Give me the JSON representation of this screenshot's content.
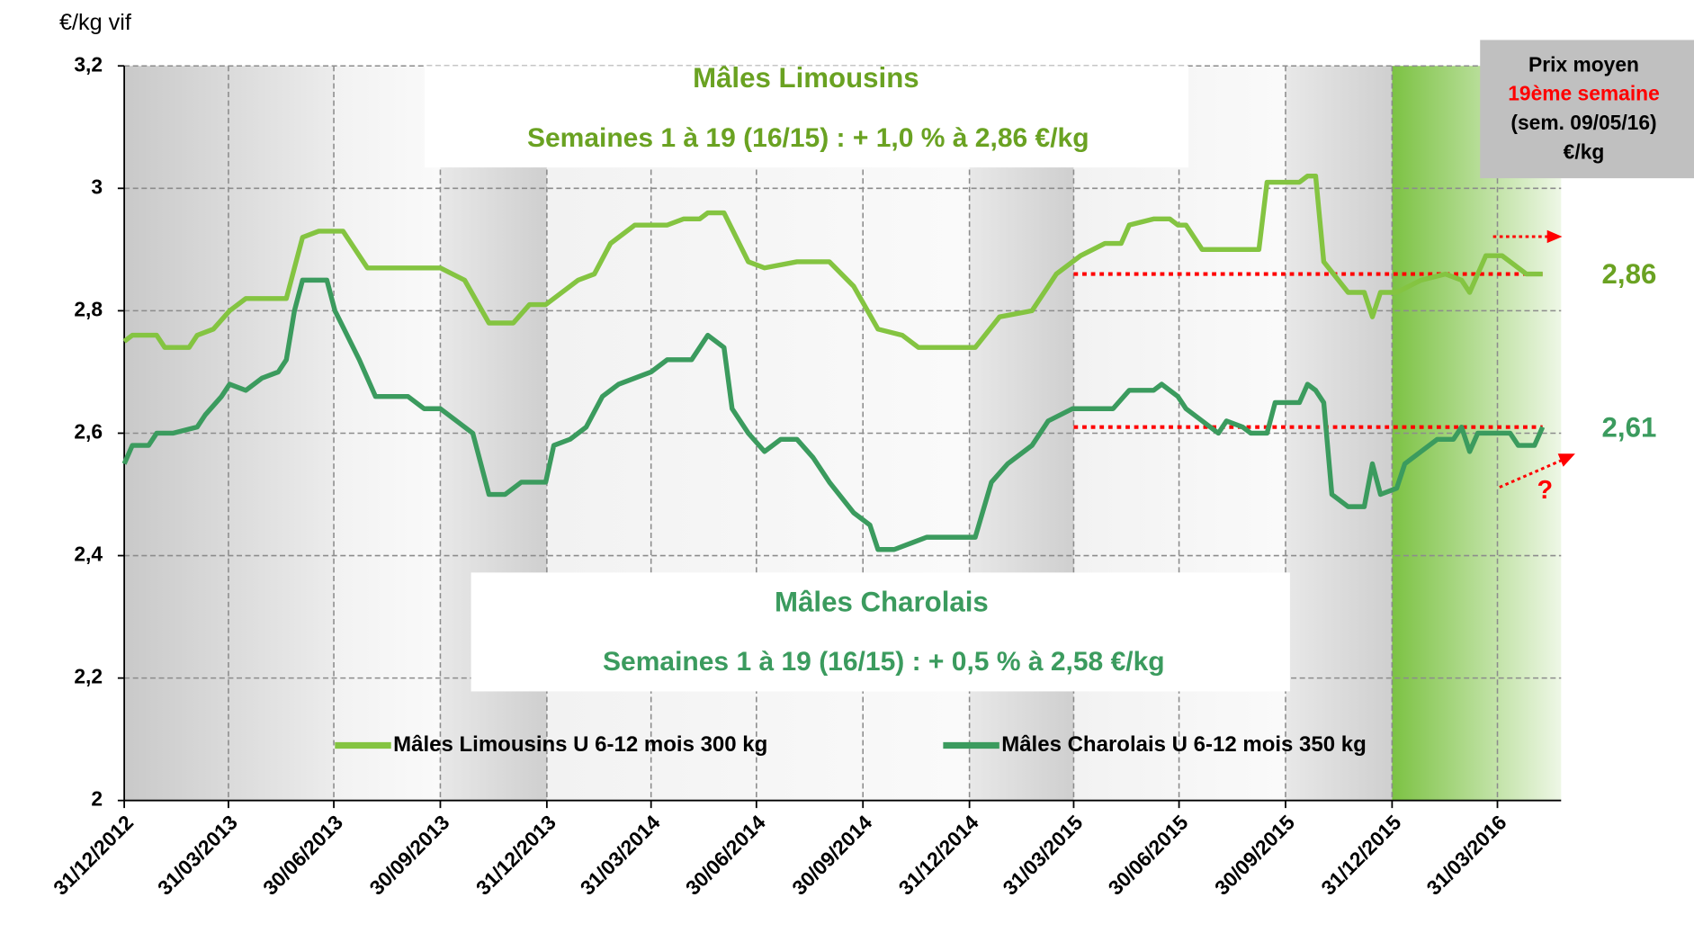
{
  "chart_data": {
    "type": "line",
    "ylabel": "€/kg vif",
    "ylim": [
      2,
      3.2
    ],
    "yticks": [
      2,
      {
        "value": 2.2,
        "label": "2,2"
      },
      {
        "value": 2.4,
        "label": "2,4"
      },
      {
        "value": 2.6,
        "label": "2,6"
      },
      {
        "value": 2.8,
        "label": "2,8"
      },
      3,
      {
        "value": 3.2,
        "label": "3,2"
      }
    ],
    "xlim": [
      "2012-12-31",
      "2016-05-25"
    ],
    "xticks": [
      {
        "value": "2012-12-31",
        "label": "31/12/2012"
      },
      {
        "value": "2013-03-31",
        "label": "31/03/2013"
      },
      {
        "value": "2013-06-30",
        "label": "30/06/2013"
      },
      {
        "value": "2013-09-30",
        "label": "30/09/2013"
      },
      {
        "value": "2013-12-31",
        "label": "31/12/2013"
      },
      {
        "value": "2014-03-31",
        "label": "31/03/2014"
      },
      {
        "value": "2014-06-30",
        "label": "30/06/2014"
      },
      {
        "value": "2014-09-30",
        "label": "30/09/2014"
      },
      {
        "value": "2014-12-31",
        "label": "31/12/2014"
      },
      {
        "value": "2015-03-31",
        "label": "31/03/2015"
      },
      {
        "value": "2015-06-30",
        "label": "30/06/2015"
      },
      {
        "value": "2015-09-30",
        "label": "30/09/2015"
      },
      {
        "value": "2015-12-31",
        "label": "31/12/2015"
      },
      {
        "value": "2016-03-31",
        "label": "31/03/2016"
      }
    ],
    "grid": true,
    "legend": "bottom",
    "series": [
      {
        "name": "Mâles Limousins U 6-12 mois 300 kg",
        "color": "#84c441",
        "x": [
          "2012-12-31",
          "2013-01-07",
          "2013-01-28",
          "2013-02-04",
          "2013-02-25",
          "2013-03-04",
          "2013-03-18",
          "2013-04-01",
          "2013-04-15",
          "2013-05-20",
          "2013-06-03",
          "2013-06-17",
          "2013-07-08",
          "2013-07-29",
          "2013-09-30",
          "2013-10-21",
          "2013-11-11",
          "2013-12-02",
          "2013-12-16",
          "2013-12-30",
          "2014-01-13",
          "2014-01-27",
          "2014-02-10",
          "2014-02-24",
          "2014-03-17",
          "2014-04-14",
          "2014-04-28",
          "2014-05-12",
          "2014-05-19",
          "2014-06-02",
          "2014-06-23",
          "2014-07-07",
          "2014-08-04",
          "2014-09-01",
          "2014-09-22",
          "2014-10-13",
          "2014-11-03",
          "2014-11-17",
          "2015-01-05",
          "2015-01-26",
          "2015-02-23",
          "2015-03-16",
          "2015-04-06",
          "2015-04-27",
          "2015-05-11",
          "2015-05-18",
          "2015-06-08",
          "2015-06-22",
          "2015-06-29",
          "2015-07-06",
          "2015-07-20",
          "2015-09-07",
          "2015-09-14",
          "2015-10-12",
          "2015-10-19",
          "2015-10-26",
          "2015-11-02",
          "2015-11-23",
          "2015-12-07",
          "2015-12-14",
          "2015-12-21",
          "2016-01-04",
          "2016-01-25",
          "2016-02-15",
          "2016-02-29",
          "2016-03-07",
          "2016-03-14",
          "2016-03-21",
          "2016-04-04",
          "2016-04-11",
          "2016-04-25",
          "2016-05-09"
        ],
        "values": [
          2.75,
          2.76,
          2.76,
          2.74,
          2.74,
          2.76,
          2.77,
          2.8,
          2.82,
          2.82,
          2.92,
          2.93,
          2.93,
          2.87,
          2.87,
          2.85,
          2.78,
          2.78,
          2.81,
          2.81,
          2.83,
          2.85,
          2.86,
          2.91,
          2.94,
          2.94,
          2.95,
          2.95,
          2.96,
          2.96,
          2.88,
          2.87,
          2.88,
          2.88,
          2.84,
          2.77,
          2.76,
          2.74,
          2.74,
          2.79,
          2.8,
          2.86,
          2.89,
          2.91,
          2.91,
          2.94,
          2.95,
          2.95,
          2.94,
          2.94,
          2.9,
          2.9,
          3.01,
          3.01,
          3.02,
          3.02,
          2.88,
          2.83,
          2.83,
          2.79,
          2.83,
          2.83,
          2.85,
          2.86,
          2.85,
          2.83,
          2.86,
          2.89,
          2.89,
          2.88,
          2.86,
          2.86
        ]
      },
      {
        "name": "Mâles Charolais U 6-12 mois 350 kg",
        "color": "#3b9b5e",
        "x": [
          "2012-12-31",
          "2013-01-07",
          "2013-01-21",
          "2013-01-28",
          "2013-02-11",
          "2013-03-04",
          "2013-03-11",
          "2013-03-25",
          "2013-04-01",
          "2013-04-15",
          "2013-04-29",
          "2013-05-13",
          "2013-05-20",
          "2013-05-27",
          "2013-06-03",
          "2013-06-24",
          "2013-07-01",
          "2013-07-22",
          "2013-08-05",
          "2013-09-02",
          "2013-09-16",
          "2013-09-30",
          "2013-10-14",
          "2013-10-28",
          "2013-11-11",
          "2013-11-25",
          "2013-12-09",
          "2013-12-30",
          "2014-01-06",
          "2014-01-20",
          "2014-02-03",
          "2014-02-17",
          "2014-03-03",
          "2014-03-31",
          "2014-04-14",
          "2014-05-05",
          "2014-05-19",
          "2014-06-02",
          "2014-06-09",
          "2014-06-23",
          "2014-07-07",
          "2014-07-21",
          "2014-08-04",
          "2014-08-18",
          "2014-09-01",
          "2014-09-22",
          "2014-10-06",
          "2014-10-13",
          "2014-10-27",
          "2014-11-10",
          "2014-11-24",
          "2015-01-05",
          "2015-01-19",
          "2015-02-02",
          "2015-02-23",
          "2015-03-09",
          "2015-03-30",
          "2015-05-04",
          "2015-05-18",
          "2015-06-08",
          "2015-06-15",
          "2015-06-29",
          "2015-07-06",
          "2015-07-20",
          "2015-08-03",
          "2015-08-10",
          "2015-08-24",
          "2015-08-31",
          "2015-09-14",
          "2015-09-21",
          "2015-10-12",
          "2015-10-19",
          "2015-10-26",
          "2015-11-02",
          "2015-11-09",
          "2015-11-23",
          "2015-12-07",
          "2015-12-14",
          "2015-12-21",
          "2016-01-04",
          "2016-01-11",
          "2016-01-25",
          "2016-02-08",
          "2016-02-22",
          "2016-02-29",
          "2016-03-07",
          "2016-03-14",
          "2016-04-11",
          "2016-04-18",
          "2016-05-02",
          "2016-05-09"
        ],
        "values": [
          2.55,
          2.58,
          2.58,
          2.6,
          2.6,
          2.61,
          2.63,
          2.66,
          2.68,
          2.67,
          2.69,
          2.7,
          2.72,
          2.8,
          2.85,
          2.85,
          2.8,
          2.72,
          2.66,
          2.66,
          2.64,
          2.64,
          2.62,
          2.6,
          2.5,
          2.5,
          2.52,
          2.52,
          2.58,
          2.59,
          2.61,
          2.66,
          2.68,
          2.7,
          2.72,
          2.72,
          2.76,
          2.74,
          2.64,
          2.6,
          2.57,
          2.59,
          2.59,
          2.56,
          2.52,
          2.47,
          2.45,
          2.41,
          2.41,
          2.42,
          2.43,
          2.43,
          2.52,
          2.55,
          2.58,
          2.62,
          2.64,
          2.64,
          2.67,
          2.67,
          2.68,
          2.66,
          2.64,
          2.62,
          2.6,
          2.62,
          2.61,
          2.6,
          2.6,
          2.65,
          2.65,
          2.68,
          2.67,
          2.65,
          2.5,
          2.48,
          2.48,
          2.55,
          2.5,
          2.51,
          2.55,
          2.57,
          2.59,
          2.59,
          2.61,
          2.57,
          2.6,
          2.6,
          2.58,
          2.58,
          2.61
        ]
      }
    ],
    "reference_lines": [
      {
        "value": 2.86,
        "label": "2,86",
        "from": "2015-03-31",
        "to": "2016-05-09",
        "label_color": "#6aa222"
      },
      {
        "value": 2.61,
        "label": "2,61",
        "from": "2015-03-31",
        "to": "2016-05-09",
        "label_color": "#3b9b5e"
      }
    ],
    "annotations": {
      "limousin_title": "Mâles Limousins",
      "limousin_text": "Semaines 1 à 19 (16/15) : + 1,0 % à 2,86 €/kg",
      "charolais_title": "Mâles Charolais",
      "charolais_text": "Semaines 1 à 19 (16/15) : + 0,5 % à 2,58 €/kg",
      "question": "?",
      "price_box": [
        "Prix moyen",
        "19ème semaine",
        "(sem. 09/05/16)",
        "€/kg"
      ]
    }
  }
}
